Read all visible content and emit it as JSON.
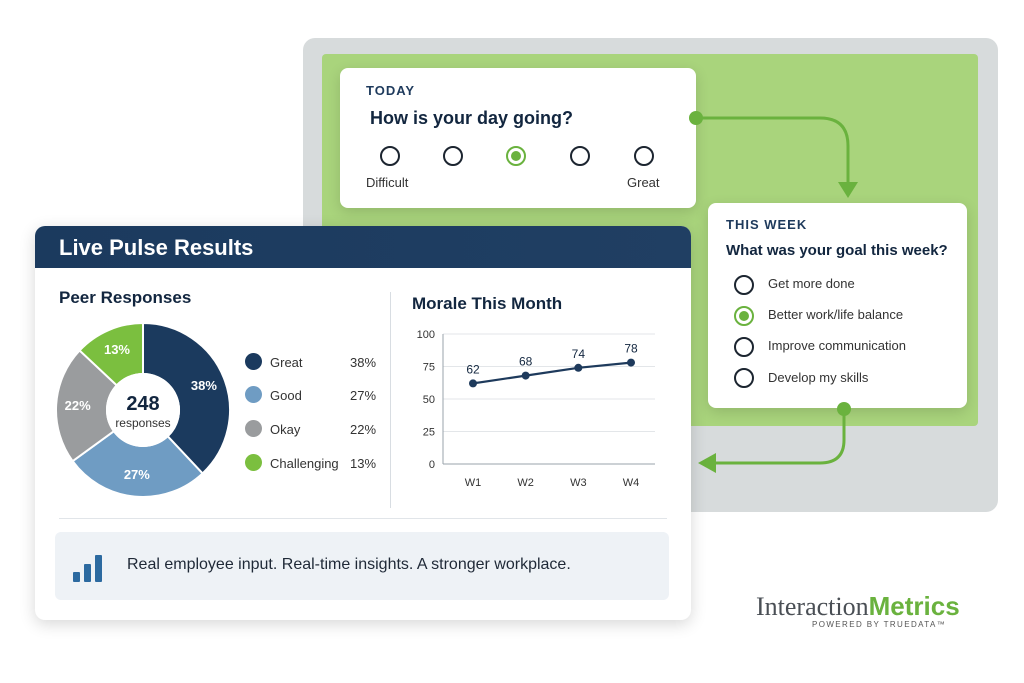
{
  "today_card": {
    "kicker": "TODAY",
    "question": "How is your day going?",
    "scale_low": "Difficult",
    "scale_high": "Great",
    "options_count": 5,
    "selected_index": 2
  },
  "week_card": {
    "kicker": "THIS WEEK",
    "question": "What was your goal this week?",
    "options": [
      {
        "label": "Get more done",
        "selected": false
      },
      {
        "label": "Better work/life balance",
        "selected": true
      },
      {
        "label": "Improve communication",
        "selected": false
      },
      {
        "label": "Develop my skills",
        "selected": false
      }
    ]
  },
  "results": {
    "title": "Live Pulse Results",
    "peer_title": "Peer Responses",
    "morale_title": "Morale This Month",
    "footer": "Real employee input. Real-time insights. A stronger workplace."
  },
  "brand": {
    "name_part1": "Interaction",
    "name_part2": "Metrics",
    "tagline": "POWERED BY TRUEDATA™"
  },
  "colors": {
    "navy": "#1b3a5e",
    "steel": "#6f9cc3",
    "gray": "#9a9c9e",
    "green": "#7bbf3f",
    "line": "#1e3a5c"
  },
  "chart_data": [
    {
      "type": "pie",
      "title": "Peer Responses",
      "center_value": "248",
      "center_label": "responses",
      "categories": [
        "Great",
        "Good",
        "Okay",
        "Challenging"
      ],
      "values": [
        38,
        27,
        22,
        13
      ],
      "labels": [
        "38%",
        "27%",
        "22%",
        "13%"
      ]
    },
    {
      "type": "line",
      "title": "Morale This Month",
      "x": [
        "W1",
        "W2",
        "W3",
        "W4"
      ],
      "y": [
        62,
        68,
        74,
        78
      ],
      "yticks": [
        0,
        25,
        50,
        75,
        100
      ],
      "ylim": [
        0,
        100
      ],
      "grid": true
    }
  ]
}
